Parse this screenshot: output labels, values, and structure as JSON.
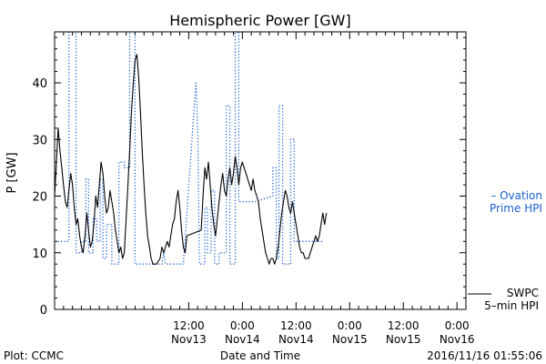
{
  "chart_data": {
    "type": "line",
    "title": "Hemispheric Power [GW]",
    "xlabel": "Date and Time",
    "ylabel": "P [GW]",
    "ylim": [
      0,
      49
    ],
    "xlim": [
      -15,
      31
    ],
    "grid": false,
    "yticks": [
      0,
      10,
      20,
      30,
      40
    ],
    "xticks": [
      {
        "x": 0,
        "time": "12:00",
        "date": "Nov13"
      },
      {
        "x": 6,
        "time": "0:00",
        "date": "Nov14"
      },
      {
        "x": 12,
        "time": "12:00",
        "date": "Nov14"
      },
      {
        "x": 18,
        "time": "0:00",
        "date": "Nov15"
      },
      {
        "x": 24,
        "time": "12:00",
        "date": "Nov15"
      },
      {
        "x": 30,
        "time": "0:00",
        "date": "Nov16"
      }
    ],
    "series": [
      {
        "name": "Ovation Prime HPI",
        "legend_lines": [
          "– Ovation",
          "Prime HPI"
        ],
        "color": "#1a5fd6",
        "style": "dotted",
        "points": [
          [
            -15,
            12
          ],
          [
            -13.4,
            12
          ],
          [
            -13.4,
            49
          ],
          [
            -12.6,
            49
          ],
          [
            -12.6,
            10
          ],
          [
            -12.0,
            10
          ],
          [
            -12.0,
            12
          ],
          [
            -11.5,
            12
          ],
          [
            -11.5,
            23
          ],
          [
            -11.2,
            23
          ],
          [
            -11.2,
            10
          ],
          [
            -10.7,
            10
          ],
          [
            -10.7,
            16
          ],
          [
            -10.3,
            16
          ],
          [
            -10.3,
            12
          ],
          [
            -9.9,
            12
          ],
          [
            -9.9,
            23
          ],
          [
            -9.6,
            23
          ],
          [
            -9.6,
            9
          ],
          [
            -9.2,
            9
          ],
          [
            -9.2,
            15
          ],
          [
            -8.6,
            15
          ],
          [
            -8.6,
            8
          ],
          [
            -7.8,
            8
          ],
          [
            -7.8,
            26
          ],
          [
            -7.2,
            26
          ],
          [
            -7.2,
            25
          ],
          [
            -6.6,
            25
          ],
          [
            -6.6,
            49
          ],
          [
            -6.0,
            49
          ],
          [
            -6.0,
            8
          ],
          [
            -3.0,
            8
          ],
          [
            -2.8,
            10
          ],
          [
            -2.6,
            8
          ],
          [
            -0.6,
            8
          ],
          [
            0.8,
            40
          ],
          [
            1.0,
            32
          ],
          [
            1.2,
            8
          ],
          [
            1.8,
            8
          ],
          [
            1.8,
            18
          ],
          [
            2.1,
            18
          ],
          [
            2.1,
            10
          ],
          [
            2.5,
            10
          ],
          [
            2.5,
            21
          ],
          [
            2.9,
            21
          ],
          [
            2.9,
            8
          ],
          [
            3.4,
            8
          ],
          [
            3.4,
            10
          ],
          [
            4.2,
            10
          ],
          [
            4.2,
            36
          ],
          [
            4.6,
            36
          ],
          [
            4.6,
            8
          ],
          [
            5.2,
            8
          ],
          [
            5.2,
            49
          ],
          [
            5.6,
            49
          ],
          [
            5.6,
            19
          ],
          [
            7.4,
            19
          ],
          [
            9.4,
            20
          ],
          [
            9.4,
            25
          ],
          [
            9.8,
            25
          ],
          [
            9.8,
            9
          ],
          [
            10.1,
            9
          ],
          [
            10.1,
            36
          ],
          [
            10.5,
            36
          ],
          [
            10.5,
            8
          ],
          [
            11.0,
            8
          ],
          [
            11.0,
            8
          ],
          [
            11.4,
            8
          ],
          [
            11.4,
            30
          ],
          [
            11.8,
            30
          ],
          [
            11.8,
            12
          ],
          [
            13.0,
            12
          ],
          [
            15,
            12
          ]
        ]
      },
      {
        "name": "SWPC 5-min HPI",
        "legend_lines": [
          "SWPC",
          "5–min HPI"
        ],
        "color": "#000000",
        "style": "solid",
        "points": [
          [
            -15,
            20
          ],
          [
            -14.8,
            26
          ],
          [
            -14.6,
            32
          ],
          [
            -14.4,
            28
          ],
          [
            -14.2,
            25
          ],
          [
            -14.0,
            22
          ],
          [
            -13.8,
            19
          ],
          [
            -13.6,
            18
          ],
          [
            -13.4,
            21
          ],
          [
            -13.2,
            24
          ],
          [
            -13.0,
            22
          ],
          [
            -12.8,
            18
          ],
          [
            -12.6,
            15
          ],
          [
            -12.4,
            16
          ],
          [
            -12.2,
            13
          ],
          [
            -12.0,
            11
          ],
          [
            -11.8,
            10
          ],
          [
            -11.6,
            13
          ],
          [
            -11.4,
            17
          ],
          [
            -11.2,
            14
          ],
          [
            -11.0,
            11
          ],
          [
            -10.8,
            12
          ],
          [
            -10.6,
            15
          ],
          [
            -10.4,
            20
          ],
          [
            -10.2,
            18
          ],
          [
            -10.0,
            22
          ],
          [
            -9.8,
            26
          ],
          [
            -9.6,
            24
          ],
          [
            -9.4,
            20
          ],
          [
            -9.2,
            17
          ],
          [
            -9.0,
            18
          ],
          [
            -8.8,
            21
          ],
          [
            -8.6,
            19
          ],
          [
            -8.4,
            17
          ],
          [
            -8.2,
            14
          ],
          [
            -8.0,
            12
          ],
          [
            -7.8,
            10
          ],
          [
            -7.6,
            11
          ],
          [
            -7.4,
            9
          ],
          [
            -7.2,
            10
          ],
          [
            -7.0,
            16
          ],
          [
            -6.8,
            22
          ],
          [
            -6.6,
            28
          ],
          [
            -6.4,
            35
          ],
          [
            -6.2,
            40
          ],
          [
            -6.0,
            44
          ],
          [
            -5.8,
            45
          ],
          [
            -5.6,
            41
          ],
          [
            -5.4,
            35
          ],
          [
            -5.2,
            28
          ],
          [
            -5.0,
            22
          ],
          [
            -4.8,
            17
          ],
          [
            -4.6,
            13
          ],
          [
            -4.4,
            11
          ],
          [
            -4.2,
            9
          ],
          [
            -4.0,
            8
          ],
          [
            -3.6,
            8
          ],
          [
            -3.2,
            9
          ],
          [
            -3.0,
            11
          ],
          [
            -2.8,
            10
          ],
          [
            -2.6,
            11
          ],
          [
            -2.4,
            12
          ],
          [
            -2.2,
            11
          ],
          [
            -2.0,
            13
          ],
          [
            -1.8,
            15
          ],
          [
            -1.6,
            16
          ],
          [
            -1.4,
            19
          ],
          [
            -1.2,
            21
          ],
          [
            -1.0,
            18
          ],
          [
            -0.8,
            14
          ],
          [
            -0.6,
            11
          ],
          [
            -0.4,
            10
          ],
          [
            -0.2,
            13
          ],
          [
            1.4,
            14
          ],
          [
            1.6,
            20
          ],
          [
            1.8,
            25
          ],
          [
            2.0,
            23
          ],
          [
            2.2,
            26
          ],
          [
            2.4,
            22
          ],
          [
            2.6,
            18
          ],
          [
            2.8,
            15
          ],
          [
            3.0,
            13
          ],
          [
            3.2,
            16
          ],
          [
            3.4,
            19
          ],
          [
            3.6,
            22
          ],
          [
            3.8,
            24
          ],
          [
            4.0,
            21
          ],
          [
            4.2,
            20
          ],
          [
            4.4,
            23
          ],
          [
            4.6,
            25
          ],
          [
            4.8,
            22
          ],
          [
            5.0,
            24
          ],
          [
            5.2,
            27
          ],
          [
            5.4,
            25
          ],
          [
            5.6,
            22
          ],
          [
            5.8,
            25
          ],
          [
            6.0,
            26
          ],
          [
            6.2,
            25
          ],
          [
            6.4,
            24
          ],
          [
            6.6,
            23
          ],
          [
            6.8,
            22
          ],
          [
            7.0,
            21
          ],
          [
            7.2,
            23
          ],
          [
            7.4,
            21
          ],
          [
            7.6,
            20
          ],
          [
            7.8,
            19
          ],
          [
            8.0,
            16
          ],
          [
            8.2,
            14
          ],
          [
            8.4,
            12
          ],
          [
            8.6,
            10
          ],
          [
            8.8,
            9
          ],
          [
            9.0,
            8
          ],
          [
            9.2,
            9
          ],
          [
            9.4,
            9
          ],
          [
            9.6,
            8
          ],
          [
            9.8,
            9
          ],
          [
            10.0,
            11
          ],
          [
            10.2,
            14
          ],
          [
            10.4,
            17
          ],
          [
            10.6,
            19
          ],
          [
            10.8,
            21
          ],
          [
            11.0,
            20
          ],
          [
            11.2,
            18
          ],
          [
            11.4,
            17
          ],
          [
            11.6,
            19
          ],
          [
            11.8,
            17
          ],
          [
            12.0,
            15
          ],
          [
            12.2,
            13
          ],
          [
            12.4,
            11
          ],
          [
            12.6,
            10
          ],
          [
            12.8,
            10
          ],
          [
            13.0,
            9
          ],
          [
            13.2,
            9
          ],
          [
            13.4,
            9
          ],
          [
            13.6,
            10
          ],
          [
            13.8,
            11
          ],
          [
            14.0,
            12
          ],
          [
            14.2,
            13
          ],
          [
            14.4,
            12
          ],
          [
            14.6,
            13
          ],
          [
            14.8,
            15
          ],
          [
            15.0,
            17
          ],
          [
            15.2,
            15
          ],
          [
            15.4,
            17
          ]
        ]
      }
    ]
  },
  "footer": {
    "left": "Plot: CCMC",
    "right": "2016/11/16 01:55:06"
  }
}
